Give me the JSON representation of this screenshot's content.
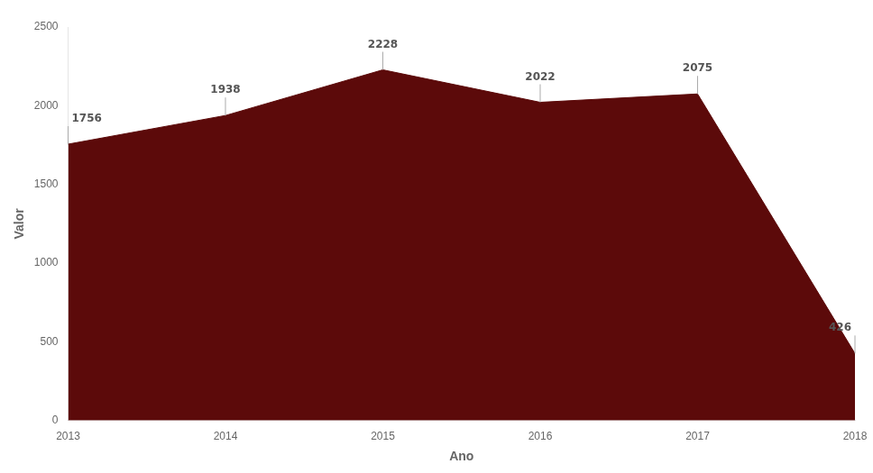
{
  "chart_data": {
    "type": "area",
    "x": [
      2013,
      2014,
      2015,
      2016,
      2017,
      2018
    ],
    "values": [
      1756,
      1938,
      2228,
      2022,
      2075,
      426
    ],
    "color": "#5c0a0a",
    "xlabel": "Ano",
    "ylabel": "Valor",
    "xlim": [
      2013,
      2018
    ],
    "xticks": [
      2013,
      2014,
      2015,
      2016,
      2017,
      2018
    ],
    "ylim": [
      0,
      2500
    ],
    "yticks": [
      0,
      500,
      1000,
      1500,
      2000,
      2500
    ],
    "grid": false,
    "data_labels": true
  }
}
